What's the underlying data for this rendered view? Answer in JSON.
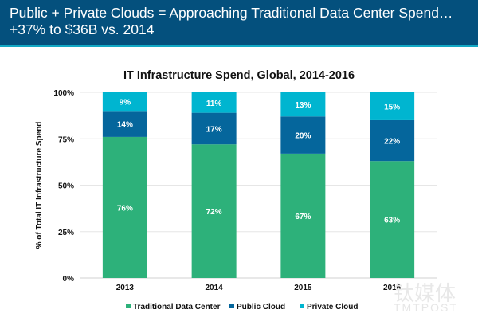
{
  "header": {
    "title": "Public + Private Clouds = Approaching Traditional Data Center Spend…\n+37% to $36B vs. 2014"
  },
  "watermark": {
    "cn": "钛媒体",
    "en": "TMTPOST"
  },
  "chart_data": {
    "type": "bar",
    "stacked": true,
    "title": "IT Infrastructure Spend, Global, 2014-2016",
    "xlabel": "",
    "ylabel": "% of Total IT Infrastructure Spend",
    "ylim": [
      0,
      100
    ],
    "yticks": [
      "0%",
      "25%",
      "50%",
      "75%",
      "100%"
    ],
    "ytick_values": [
      0,
      25,
      50,
      75,
      100
    ],
    "grid": true,
    "legend_position": "bottom",
    "categories": [
      "2013",
      "2014",
      "2015",
      "2016"
    ],
    "series": [
      {
        "name": "Traditional Data Center",
        "color": "#2db17a",
        "values": [
          76,
          72,
          67,
          63
        ],
        "labels": [
          "76%",
          "72%",
          "67%",
          "63%"
        ]
      },
      {
        "name": "Public Cloud",
        "color": "#05669c",
        "values": [
          14,
          17,
          20,
          22
        ],
        "labels": [
          "14%",
          "17%",
          "20%",
          "22%"
        ]
      },
      {
        "name": "Private Cloud",
        "color": "#00b5d0",
        "values": [
          9,
          11,
          13,
          15
        ],
        "labels": [
          "9%",
          "11%",
          "13%",
          "15%"
        ]
      }
    ]
  }
}
